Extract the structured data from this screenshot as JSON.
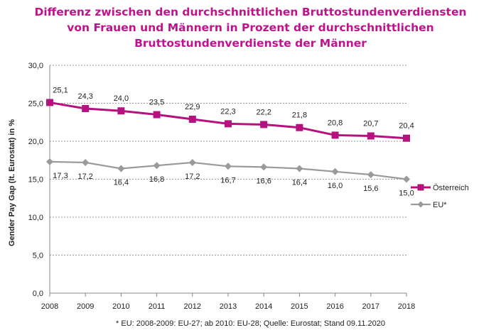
{
  "chart_data": {
    "type": "line",
    "title_lines": [
      "Differenz zwischen den durchschnittlichen Bruttostundenverdiensten",
      "von Frauen und Männern in Prozent der durchschnittlichen",
      "Bruttostundenverdienste der Männer"
    ],
    "xlabel": "",
    "ylabel": "Gender Pay Gap (lt. Eurostat) in %",
    "ylim": [
      0,
      30
    ],
    "yticks": [
      "0,0",
      "5,0",
      "10,0",
      "15,0",
      "20,0",
      "25,0",
      "30,0"
    ],
    "categories": [
      "2008",
      "2009",
      "2010",
      "2011",
      "2012",
      "2013",
      "2014",
      "2015",
      "2016",
      "2017",
      "2018"
    ],
    "grid": true,
    "legend_position": "right",
    "series": [
      {
        "name": "Österreich",
        "color": "#b5127f",
        "marker": "square",
        "values": [
          25.1,
          24.3,
          24.0,
          23.5,
          22.9,
          22.3,
          22.2,
          21.8,
          20.8,
          20.7,
          20.4
        ],
        "labels": [
          "25,1",
          "24,3",
          "24,0",
          "23,5",
          "22,9",
          "22,3",
          "22,2",
          "21,8",
          "20,8",
          "20,7",
          "20,4"
        ]
      },
      {
        "name": "EU*",
        "color": "#9a9a9a",
        "marker": "diamond",
        "values": [
          17.3,
          17.2,
          16.4,
          16.8,
          17.2,
          16.7,
          16.6,
          16.4,
          16.0,
          15.6,
          15.0
        ],
        "labels": [
          "17,3",
          "17,2",
          "16,4",
          "16,8",
          "17,2",
          "16,7",
          "16,6",
          "16,4",
          "16,0",
          "15,6",
          "15,0"
        ]
      }
    ],
    "footnote": "* EU: 2008-2009: EU-27; ab 2010: EU-28; Quelle: Eurostat; Stand 09.11.2020"
  }
}
